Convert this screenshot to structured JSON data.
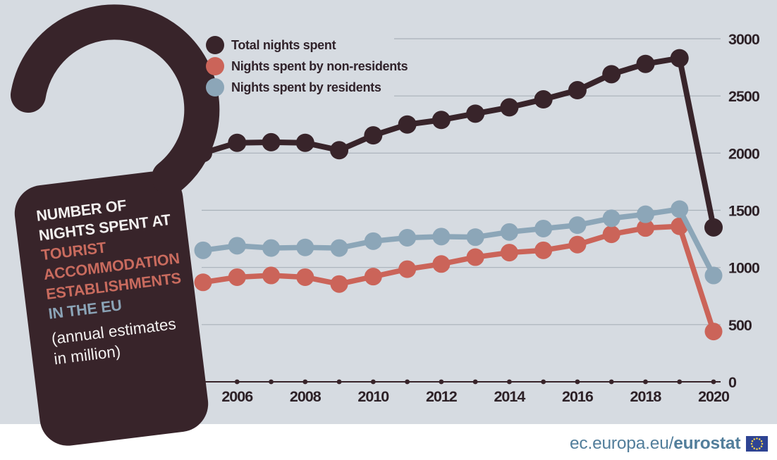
{
  "background_color": "#d6dbe1",
  "footer_band_color": "#ffffff",
  "hanger": {
    "bg_color": "#38242a",
    "line1": "NUMBER OF",
    "line2": "NIGHTS SPENT AT",
    "line3": "TOURIST",
    "line4": "ACCOMMODATION",
    "line5": "ESTABLISHMENTS",
    "line6": "IN THE EU",
    "line7": "(annual estimates",
    "line8": "in million)",
    "white_text_color": "#f3f1f0",
    "accent_text_color": "#c96b5e",
    "blue_text_color": "#8ba4b7"
  },
  "footer": {
    "prefix": "ec.europa.eu/",
    "brand": "eurostat",
    "text_color": "#527e9b",
    "flag_bg_color": "#2e4493",
    "flag_star_color": "#f8d44a"
  },
  "chart_data": {
    "type": "line",
    "title": "Number of nights spent at tourist accommodation establishments in the EU (annual estimates in million)",
    "x": [
      2005,
      2006,
      2007,
      2008,
      2009,
      2010,
      2011,
      2012,
      2013,
      2014,
      2015,
      2016,
      2017,
      2018,
      2019,
      2020
    ],
    "x_tick_labels": [
      2006,
      2008,
      2010,
      2012,
      2014,
      2016,
      2018,
      2020
    ],
    "y_ticks": [
      0,
      500,
      1000,
      1500,
      2000,
      2500,
      3000
    ],
    "ylim": [
      0,
      3000
    ],
    "grid": true,
    "grid_color": "#a9b1b9",
    "axis_color": "#38242a",
    "tick_label_color": "#2d2127",
    "legend_position": "top-left",
    "series": [
      {
        "name": "Total nights spent",
        "color": "#38242a",
        "values": [
          2000,
          2090,
          2095,
          2090,
          2025,
          2155,
          2250,
          2290,
          2345,
          2400,
          2470,
          2550,
          2690,
          2780,
          2830,
          1350
        ]
      },
      {
        "name": "Nights spent by non-residents",
        "color": "#cb6459",
        "values": [
          870,
          915,
          930,
          915,
          855,
          920,
          985,
          1030,
          1090,
          1130,
          1150,
          1200,
          1290,
          1345,
          1360,
          440
        ]
      },
      {
        "name": "Nights spent by residents",
        "color": "#8ca6b8",
        "values": [
          1150,
          1190,
          1170,
          1175,
          1170,
          1230,
          1260,
          1270,
          1265,
          1310,
          1340,
          1370,
          1430,
          1465,
          1510,
          930
        ]
      }
    ]
  }
}
